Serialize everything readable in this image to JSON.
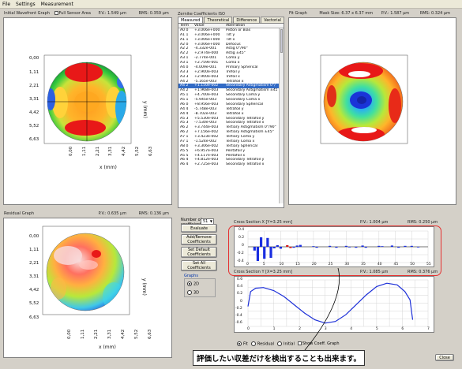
{
  "menu": [
    "File",
    "Settings",
    "Measurement"
  ],
  "initial_wavefront": {
    "title": "Initial Wavefront Graph",
    "full_sensor_area_label": "Full Sensor Area",
    "pv": "P.V.: 1.549 µm",
    "rms": "RMS: 0.359 µm",
    "y_ticks": [
      "0,00",
      "1,11",
      "2,21",
      "3,31",
      "4,42",
      "5,52",
      "6,63"
    ],
    "x_ticks": [
      "0,00",
      "1,11",
      "2,21",
      "3,31",
      "4,42",
      "5,52",
      "6,63"
    ],
    "x_label": "x (mm)",
    "y_label": "y (mm)"
  },
  "zernike": {
    "title": "Zernike Coefficients ISO",
    "tabs": [
      "Measured",
      "Theoretical",
      "Difference",
      "Vectorial"
    ],
    "columns": [
      "Term",
      "Value",
      "Aberration"
    ],
    "rows": [
      [
        "A0 0",
        "+3.006e+000",
        "Piston or Bias"
      ],
      [
        "A1 1",
        "+3.006e+000",
        "Tilt y"
      ],
      [
        "A1 1",
        "+3.006e+000",
        "Tilt x"
      ],
      [
        "A2 0",
        "+3.006e+000",
        "Defocus"
      ],
      [
        "A2 2",
        "-4.332e-001",
        "Astig 0°/90°"
      ],
      [
        "A2 2",
        "+2.974e-000",
        "Astig ±45°"
      ],
      [
        "A3 1",
        "-2.774e-001",
        "Coma y"
      ],
      [
        "A3 1",
        "+2.759e-001",
        "Coma x"
      ],
      [
        "A4 0",
        "-4.009e-001",
        "Primary Spherical"
      ],
      [
        "A3 3",
        "+2.900e-003",
        "Trefoil y"
      ],
      [
        "A3 3",
        "+2.900e-003",
        "Trefoil x"
      ],
      [
        "A4 2",
        "-5.165e-003",
        "Tetrafoil x"
      ],
      [
        "A4 2",
        "+1.150e-002",
        "Secondary Astigmatism 0°/"
      ],
      [
        "A4 2",
        "+1.968e-003",
        "Secondary Astigmatism ±45°"
      ],
      [
        "A5 1",
        "+4.700e-003",
        "Secondary Coma y"
      ],
      [
        "A5 1",
        "-5.945e-003",
        "Secondary Coma x"
      ],
      [
        "A6 0",
        "+8.956e-003",
        "Secondary Spherical"
      ],
      [
        "A4 4",
        "-5.748e-003",
        "Tetrafoil y"
      ],
      [
        "A4 4",
        "-8.702e-003",
        "Tetrafoil x"
      ],
      [
        "A5 3",
        "+5.530e-003",
        "Secondary Tetrafoil y"
      ],
      [
        "A5 3",
        "-7.530e-003",
        "Secondary Tetrafoil x"
      ],
      [
        "A6 2",
        "+3.744e-003",
        "Tertiary Astigmatism 0°/90°"
      ],
      [
        "A6 2",
        "+7.156e-002",
        "Tertiary Astigmatism ±45°"
      ],
      [
        "A7 1",
        "+3.423e-002",
        "Tertiary Coma y"
      ],
      [
        "A7 1",
        "-1.524e-002",
        "Tertiary Coma x"
      ],
      [
        "A8 0",
        "+3.306e-002",
        "Tertiary Spherical"
      ],
      [
        "A5 5",
        "+6.957e-003",
        "Pentafoil y"
      ],
      [
        "A5 5",
        "+4.117e-003",
        "Pentafoil x"
      ],
      [
        "A6 4",
        "+4.812e-003",
        "Secondary Tetrafoil y"
      ],
      [
        "A6 4",
        "+2.725e-003",
        "Secondary Tetrafoil x"
      ]
    ],
    "selected_index": 12
  },
  "fit_graph": {
    "title": "Fit Graph",
    "mask_size": "Mask Size: 6.37 x 6.37 mm",
    "pv": "P.V.: 1.587 µm",
    "rms": "RMS: 0.324 µm"
  },
  "residual": {
    "title": "Residual Graph",
    "pv": "P.V.: 0.635 µm",
    "rms": "RMS: 0.136 µm"
  },
  "controls": {
    "num_coeff_label": "Number of coefficients:",
    "num_coeff_value": "51",
    "evaluate": "Evaluate",
    "add_remove": "Add/Remove Coefficients",
    "set_default": "Set Default Coefficients",
    "set_all": "Set All Coefficients",
    "graphs_label": "Graphs",
    "graph_2d": "2D",
    "graph_3d": "3D"
  },
  "cross_x": {
    "title": "Cross Section X [Y=3.25 mm]",
    "pv": "P.V.: 1.004 µm",
    "rms": "RMS: 0.250 µm",
    "y_ticks": [
      "0.4",
      "0.2",
      "0",
      "-0.2",
      "-0.4"
    ],
    "x_ticks": [
      "0",
      "5",
      "10",
      "15",
      "20",
      "25",
      "30",
      "35",
      "40",
      "45",
      "50",
      "55"
    ]
  },
  "cross_y": {
    "title": "Cross Section Y [X=3.25 mm]",
    "pv": "P.V.: 1.085 µm",
    "rms": "RMS: 0.376 µm",
    "y_ticks": [
      "0.6",
      "0.4",
      "0.2",
      "0",
      "-0.2",
      "-0.4",
      "-0.6"
    ],
    "x_ticks": [
      "0",
      "1",
      "2",
      "3",
      "4",
      "5",
      "6",
      "7"
    ]
  },
  "bottom": {
    "fit": "Fit",
    "residual": "Residual",
    "initial": "Initial",
    "show_coeff": "Show Coeff. Graph",
    "close": "Close"
  },
  "annotation": "評価したい収差だけを検出することも出来ます。",
  "chart_data": [
    {
      "type": "bar",
      "title": "Cross Section X [Y=3.25 mm]",
      "xlabel": "",
      "ylabel": "",
      "ylim": [
        -0.5,
        0.5
      ],
      "xlim": [
        0,
        55
      ],
      "x": [
        2,
        3,
        4,
        5,
        6,
        7,
        8,
        9,
        10,
        12,
        13,
        14,
        15,
        16,
        20,
        21,
        25,
        27,
        30,
        31,
        33,
        35,
        36,
        40,
        41,
        44,
        46,
        48,
        50,
        52
      ],
      "values": [
        -0.12,
        -0.45,
        0.3,
        -0.38,
        0.28,
        -0.35,
        -0.05,
        0.05,
        -0.06,
        0.05,
        -0.04,
        -0.03,
        0.04,
        0.06,
        0.02,
        -0.03,
        0.03,
        -0.03,
        0.03,
        -0.02,
        -0.03,
        0.04,
        -0.03,
        0.03,
        0.02,
        0.04,
        -0.03,
        0.03,
        0.03,
        -0.02
      ]
    },
    {
      "type": "line",
      "title": "Cross Section Y [X=3.25 mm]",
      "xlabel": "",
      "ylabel": "",
      "xlim": [
        0,
        7
      ],
      "ylim": [
        -0.7,
        0.7
      ],
      "x": [
        0.0,
        0.1,
        0.3,
        0.6,
        1.0,
        1.4,
        1.8,
        2.2,
        2.6,
        3.0,
        3.4,
        3.8,
        4.2,
        4.6,
        5.0,
        5.4,
        5.8,
        6.1,
        6.3,
        6.4
      ],
      "y": [
        -0.1,
        0.35,
        0.45,
        0.47,
        0.38,
        0.2,
        -0.05,
        -0.3,
        -0.5,
        -0.6,
        -0.55,
        -0.35,
        -0.05,
        0.25,
        0.5,
        0.6,
        0.55,
        0.35,
        0.1,
        -0.5
      ]
    }
  ]
}
